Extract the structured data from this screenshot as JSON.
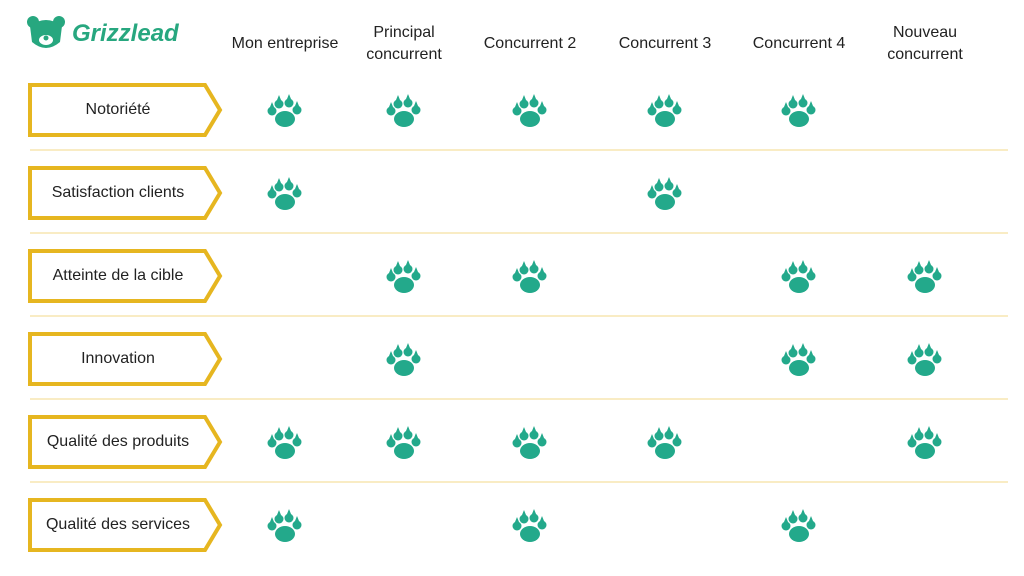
{
  "logo": "Grizzlead",
  "columns": [
    "Mon entreprise",
    "Principal concurrent",
    "Concurrent 2",
    "Concurrent 3",
    "Concurrent 4",
    "Nouveau concurrent"
  ],
  "rows": [
    {
      "label": "Notoriété",
      "cells": [
        true,
        true,
        true,
        true,
        true,
        false
      ]
    },
    {
      "label": "Satisfaction clients",
      "cells": [
        true,
        false,
        false,
        true,
        false,
        false
      ]
    },
    {
      "label": "Atteinte de la cible",
      "cells": [
        false,
        true,
        true,
        false,
        true,
        true
      ]
    },
    {
      "label": "Innovation",
      "cells": [
        false,
        true,
        false,
        false,
        true,
        true
      ]
    },
    {
      "label": "Qualité des produits",
      "cells": [
        true,
        true,
        true,
        true,
        false,
        true
      ]
    },
    {
      "label": "Qualité des services",
      "cells": [
        true,
        false,
        true,
        false,
        true,
        false
      ]
    }
  ]
}
